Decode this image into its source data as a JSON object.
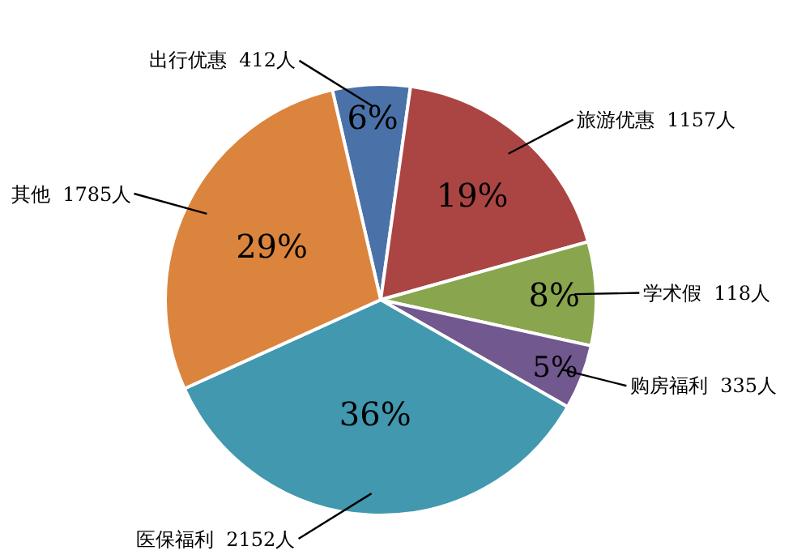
{
  "chart_data": {
    "type": "pie",
    "categories": [
      "出行优惠  412人",
      "旅游优惠  1157人",
      "学术假  118人",
      "购房福利  335人",
      "医保福利  2152人",
      "其他  1785人"
    ],
    "values": [
      6,
      19,
      8,
      5,
      36,
      29
    ],
    "value_labels": [
      "6%",
      "19%",
      "8%",
      "5%",
      "36%",
      "29%"
    ],
    "colors": [
      "#4a72a8",
      "#ab4543",
      "#89a54e",
      "#71588f",
      "#4198af",
      "#db843d"
    ],
    "legend": false
  }
}
